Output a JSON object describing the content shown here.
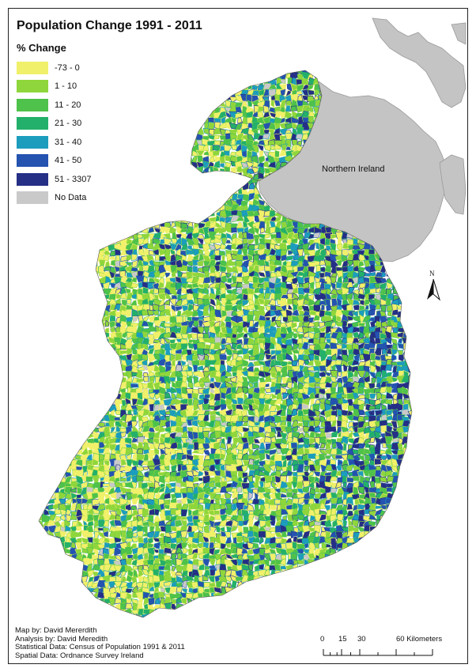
{
  "title": "Population Change 1991 - 2011",
  "legend": {
    "heading": "% Change",
    "items": [
      {
        "label": "-73 - 0",
        "color": "#f0f06a"
      },
      {
        "label": "1 - 10",
        "color": "#8fd63c"
      },
      {
        "label": "11 - 20",
        "color": "#4ec24a"
      },
      {
        "label": "21 - 30",
        "color": "#23b06a"
      },
      {
        "label": "31 - 40",
        "color": "#1c9dbd"
      },
      {
        "label": "41 - 50",
        "color": "#2453b0"
      },
      {
        "label": "51 - 3307",
        "color": "#252f86"
      },
      {
        "label": "No Data",
        "color": "#c9c9c9"
      }
    ]
  },
  "region_label": "Northern Ireland",
  "north_arrow": {
    "letter": "N"
  },
  "scale_bar": {
    "labels": [
      "0",
      "15",
      "30",
      "60 Kilometers"
    ]
  },
  "credits": {
    "line1": "Map by: David Mererdith",
    "line2": "Analysis by: David Meredith",
    "line3": "Statistical Data: Census of Population 1991 & 2011",
    "line4": "Spatial Data: Ordnance Survey Ireland"
  },
  "colors": {
    "land_grey": "#c4c4c4",
    "land_grey_stroke": "#9a9a9a"
  }
}
